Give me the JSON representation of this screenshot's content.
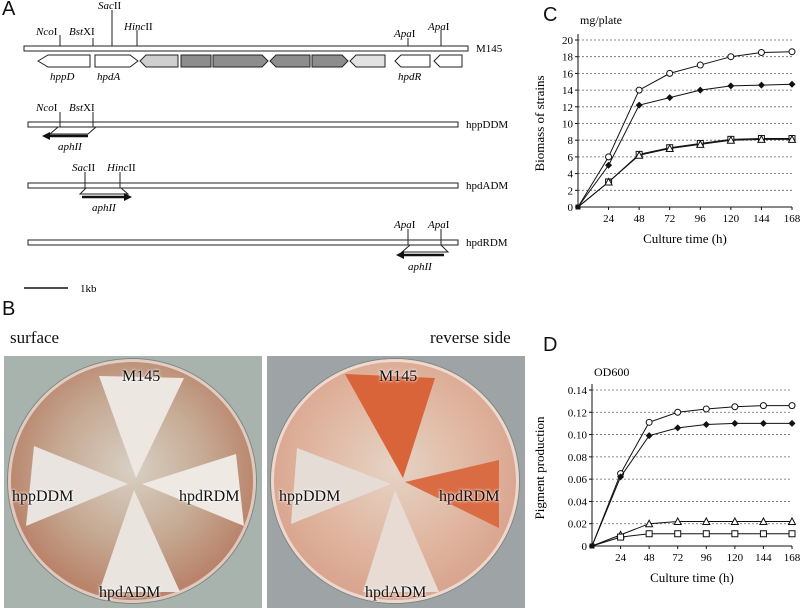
{
  "panel_letters": {
    "a": "A",
    "b": "B",
    "c": "C",
    "d": "D"
  },
  "map": {
    "strains": [
      "M145",
      "hppDDM",
      "hpdADM",
      "hpdRDM"
    ],
    "sites": {
      "nco": "Nco",
      "bst": "Bst",
      "sac": "Sac",
      "hinc": "Hinc",
      "apa1": "Apa",
      "apa2": "Apa"
    },
    "site_suffix": {
      "nco": "I",
      "bst": "XI",
      "sac": "II",
      "hinc": "II",
      "apa1": "I",
      "apa2": "I"
    },
    "genes": {
      "hppD": "hppD",
      "hpdA": "hpdA",
      "hpdR": "hpdR"
    },
    "marker": "aphII",
    "scale_label": "1kb"
  },
  "plates": {
    "surface_caption": "surface",
    "reverse_caption": "reverse side",
    "labels": {
      "m145": "M145",
      "hppddm": "hppDDM",
      "hpdrdm": "hpdRDM",
      "hpdadm": "hpdADM"
    },
    "colors": {
      "pigment": "#d9643a",
      "mycelium": "#f2ece6",
      "background": "#a9b3ae"
    }
  },
  "chart_data": [
    {
      "type": "line",
      "panel": "C",
      "unit_label": "mg/plate",
      "ylabel": "Biomass of strains",
      "xlabel": "Culture time (h)",
      "x": [
        0,
        24,
        48,
        72,
        96,
        120,
        144,
        168
      ],
      "xticks": [
        "24",
        "48",
        "72",
        "96",
        "120",
        "144",
        "168"
      ],
      "yticks": [
        "0",
        "2",
        "4",
        "6",
        "8",
        "10",
        "12",
        "14",
        "16",
        "18",
        "20"
      ],
      "ylim": [
        0,
        20
      ],
      "grid": "horizontal dotted",
      "series": [
        {
          "marker": "open-circle",
          "values": [
            0,
            6,
            14,
            16,
            17,
            18,
            18.5,
            18.6
          ]
        },
        {
          "marker": "filled-diamond",
          "values": [
            0,
            5,
            12.2,
            13.1,
            14,
            14.5,
            14.6,
            14.7
          ]
        },
        {
          "marker": "open-square",
          "values": [
            0,
            3,
            6.3,
            7.1,
            7.6,
            8.1,
            8.2,
            8.2
          ]
        },
        {
          "marker": "open-triangle",
          "values": [
            0,
            3,
            6.2,
            7,
            7.5,
            8,
            8.1,
            8.1
          ]
        }
      ]
    },
    {
      "type": "line",
      "panel": "D",
      "unit_label": "OD600",
      "ylabel": "Pigment production",
      "xlabel": "Culture time (h)",
      "x": [
        0,
        24,
        48,
        72,
        96,
        120,
        144,
        168
      ],
      "xticks": [
        "24",
        "48",
        "72",
        "96",
        "120",
        "144",
        "168"
      ],
      "yticks": [
        "0",
        "0.02",
        "0.04",
        "0.06",
        "0.08",
        "0.10",
        "0.12",
        "0.14"
      ],
      "ylim": [
        0,
        0.14
      ],
      "grid": "horizontal dotted",
      "series": [
        {
          "marker": "open-circle",
          "values": [
            0,
            0.065,
            0.111,
            0.12,
            0.123,
            0.125,
            0.126,
            0.126
          ]
        },
        {
          "marker": "filled-diamond",
          "values": [
            0,
            0.062,
            0.099,
            0.106,
            0.109,
            0.11,
            0.11,
            0.11
          ]
        },
        {
          "marker": "open-triangle",
          "values": [
            0,
            0.01,
            0.02,
            0.022,
            0.022,
            0.022,
            0.022,
            0.022
          ]
        },
        {
          "marker": "open-square",
          "values": [
            0,
            0.008,
            0.011,
            0.011,
            0.011,
            0.011,
            0.011,
            0.011
          ]
        }
      ]
    }
  ]
}
